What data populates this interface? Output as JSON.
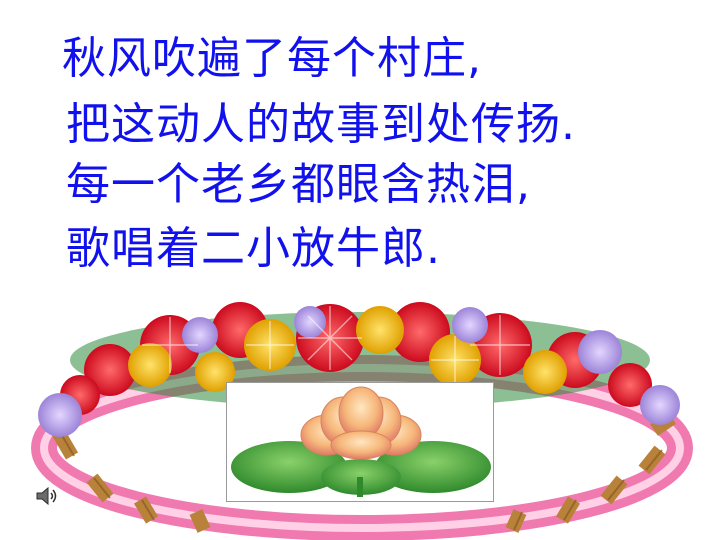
{
  "poem": {
    "lines": [
      "秋风吹遍了每个村庄,",
      "把这动人的故事到处传扬.",
      "每一个老乡都眼含热泪,",
      "歌唱着二小放牛郎."
    ],
    "color": "#1111ee"
  },
  "illustrations": {
    "wreath": "flower-wreath",
    "center_image": "lotus"
  },
  "controls": {
    "audio_icon": "speaker-icon"
  }
}
